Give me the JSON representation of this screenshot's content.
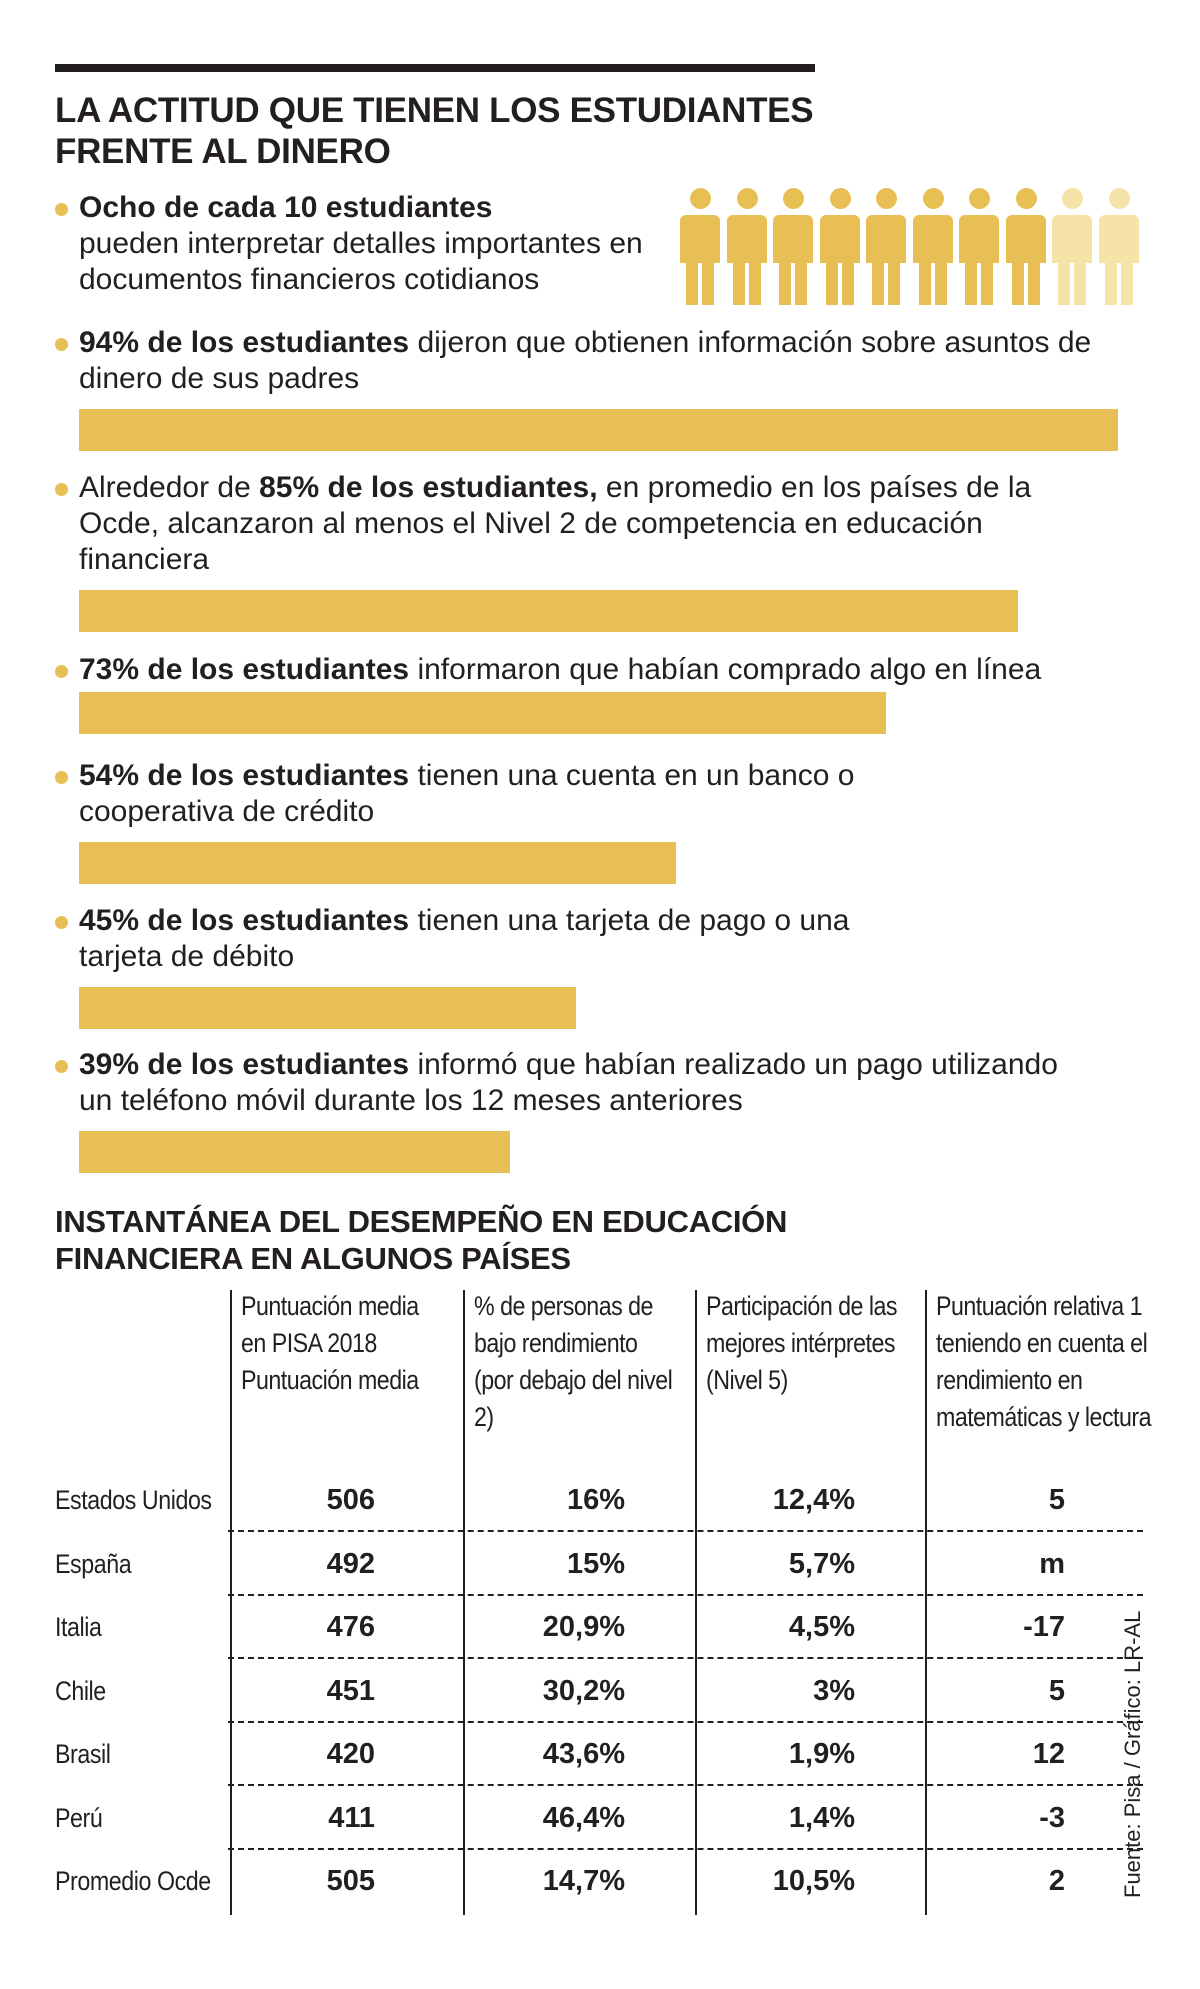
{
  "title": "LA ACTITUD QUE TIENEN LOS ESTUDIANTES FRENTE AL DINERO",
  "people_icons": {
    "filled": 8,
    "total": 10,
    "color_filled": "#e8bf55",
    "color_empty": "#f5e3a8",
    "icon": "person-icon"
  },
  "stats": [
    {
      "bold": "Ocho de cada 10 estudiantes",
      "rest": "pueden interpretar detalles importantes en documentos financieros cotidianos"
    },
    {
      "bold": "94% de los estudiantes",
      "rest": " dijeron que obtienen información sobre asuntos de dinero de sus padres"
    },
    {
      "pre": "Alrededor de ",
      "bold": "85% de los estudiantes,",
      "rest": " en promedio en los países de la Ocde, alcanzaron al menos el Nivel 2 de competencia en educación financiera"
    },
    {
      "bold": "73% de los estudiantes",
      "rest": " informaron que habían comprado algo en línea"
    },
    {
      "bold": "54% de los estudiantes",
      "rest": " tienen una cuenta en un banco o cooperativa de crédito"
    },
    {
      "bold": "45% de los estudiantes",
      "rest": " tienen una tarjeta de pago o una tarjeta de débito"
    },
    {
      "bold": "39% de los estudiantes",
      "rest": " informó que habían realizado un pago utilizando un teléfono móvil durante los 12 meses anteriores"
    }
  ],
  "chart_data": {
    "type": "bar",
    "categories": [
      "94%",
      "85%",
      "73%",
      "54%",
      "45%",
      "39%"
    ],
    "values": [
      94,
      85,
      73,
      54,
      45,
      39
    ],
    "ylim": [
      0,
      100
    ],
    "color": "#e8bf55"
  },
  "table": {
    "title": "INSTANTÁNEA DEL DESEMPEÑO EN EDUCACIÓN FINANCIERA EN ALGUNOS PAÍSES",
    "columns": [
      {
        "label": "Puntuación media en PISA 2018",
        "sub": "Puntuación media"
      },
      {
        "label": "% de personas de bajo rendimiento (por debajo del nivel 2)",
        "sub": ""
      },
      {
        "label": "Participación de las mejores intérpretes (Nivel 5)",
        "sub": ""
      },
      {
        "label": "Puntuación relativa 1 teniendo en cuenta el rendimiento en matemáticas y lectura",
        "sub": ""
      }
    ],
    "rows": [
      {
        "country": "Estados Unidos",
        "values": [
          "506",
          "16%",
          "12,4%",
          "5"
        ]
      },
      {
        "country": "España",
        "values": [
          "492",
          "15%",
          "5,7%",
          "m"
        ]
      },
      {
        "country": "Italia",
        "values": [
          "476",
          "20,9%",
          "4,5%",
          "-17"
        ]
      },
      {
        "country": "Chile",
        "values": [
          "451",
          "30,2%",
          "3%",
          "5"
        ]
      },
      {
        "country": "Brasil",
        "values": [
          "420",
          "43,6%",
          "1,9%",
          "12"
        ]
      },
      {
        "country": "Perú",
        "values": [
          "411",
          "46,4%",
          "1,4%",
          "-3"
        ]
      },
      {
        "country": "Promedio Ocde",
        "values": [
          "505",
          "14,7%",
          "10,5%",
          "2"
        ]
      }
    ]
  },
  "source": "Fuente: Pisa / Gráfico: LR-AL"
}
